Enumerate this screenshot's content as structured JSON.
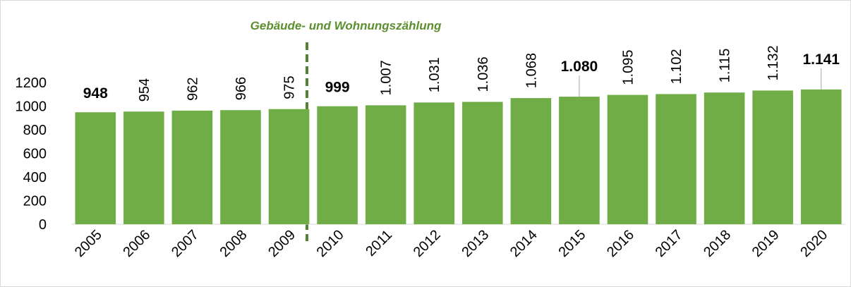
{
  "chart_data": {
    "type": "bar",
    "annotation": "Gebäude- und Wohnungszählung",
    "categories": [
      "2005",
      "2006",
      "2007",
      "2008",
      "2009",
      "2010",
      "2011",
      "2012",
      "2013",
      "2014",
      "2015",
      "2016",
      "2017",
      "2018",
      "2019",
      "2020"
    ],
    "values": [
      948,
      954,
      962,
      966,
      975,
      999,
      1007,
      1031,
      1036,
      1068,
      1080,
      1095,
      1102,
      1115,
      1132,
      1141
    ],
    "value_labels": [
      "948",
      "954",
      "962",
      "966",
      "975",
      "999",
      "1.007",
      "1.031",
      "1.036",
      "1.068",
      "1.080",
      "1.095",
      "1.102",
      "1.115",
      "1.132",
      "1.141"
    ],
    "value_label_bold": [
      true,
      false,
      false,
      false,
      false,
      true,
      false,
      false,
      false,
      false,
      true,
      false,
      false,
      false,
      false,
      true
    ],
    "color": "#70ad47",
    "ylim": [
      0,
      1200
    ],
    "yticks": [
      0,
      200,
      400,
      600,
      800,
      1000,
      1200
    ],
    "grid": false
  }
}
